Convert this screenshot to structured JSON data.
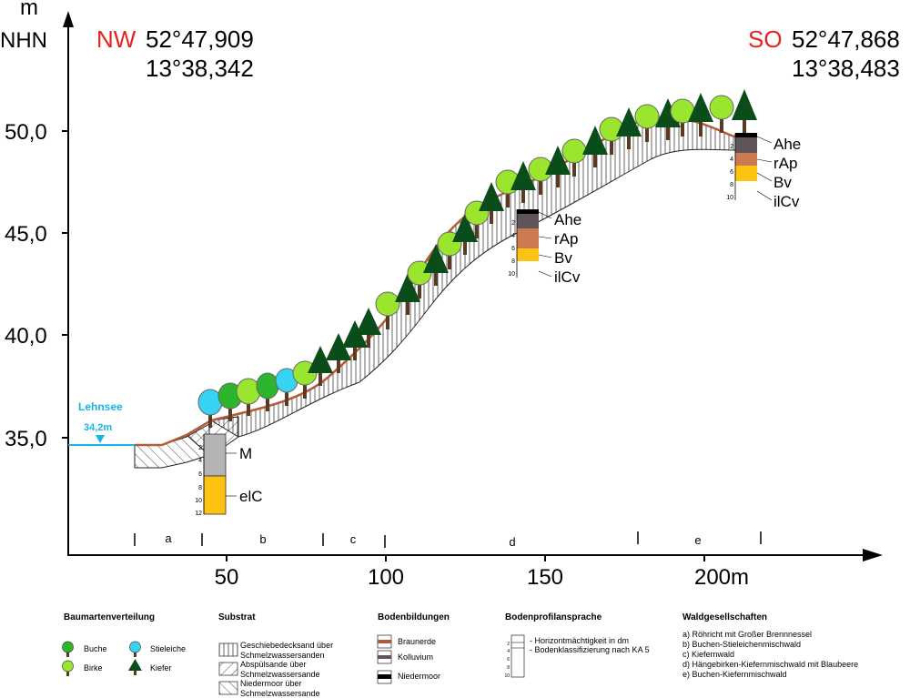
{
  "axis": {
    "y_unit_top": "m",
    "y_unit_name": "NHN",
    "y_ticks": [
      "50,0",
      "45,0",
      "40,0",
      "35,0"
    ],
    "x_ticks": [
      "50",
      "100",
      "150",
      "200m"
    ]
  },
  "endpoints": {
    "nw": {
      "label": "NW",
      "lat": "52°47,909",
      "lon": "13°38,342",
      "color": "#e52421"
    },
    "so": {
      "label": "SO",
      "lat": "52°47,868",
      "lon": "13°38,483",
      "color": "#e52421"
    }
  },
  "lake": {
    "name": "Lehnsee",
    "level": "34,2m",
    "color": "#17b5e6"
  },
  "segments": [
    "a",
    "b",
    "c",
    "d",
    "e"
  ],
  "profiles": [
    {
      "id": "lower",
      "horizons": [
        "M",
        "elC"
      ],
      "depth_ticks": [
        "2",
        "4",
        "6",
        "8",
        "10",
        "12"
      ]
    },
    {
      "id": "middle",
      "horizons": [
        "Ahe",
        "rAp",
        "Bv",
        "ilCv"
      ],
      "depth_ticks": [
        "2",
        "4",
        "6",
        "8",
        "10"
      ]
    },
    {
      "id": "upper",
      "horizons": [
        "Ahe",
        "rAp",
        "Bv",
        "ilCv"
      ],
      "depth_ticks": [
        "2",
        "4",
        "6",
        "8",
        "10"
      ]
    }
  ],
  "colors": {
    "buche": "#2db52d",
    "birke": "#9ae62e",
    "stieleiche": "#37d3f2",
    "kiefer": "#0b4d1a",
    "braunerde": "#b25b38",
    "kolluvium": "#5f5558",
    "niedermoor": "#000000",
    "bv": "#fdc313",
    "rap": "#cc7a52",
    "elc": "#fdc313",
    "m": "#b4b4b4"
  },
  "legend": {
    "baumarten": {
      "title": "Baumartenverteilung",
      "items": [
        "Buche",
        "Stieleiche",
        "Birke",
        "Kiefer"
      ]
    },
    "substrat": {
      "title": "Substrat",
      "items": [
        "Geschiebedecksand über Schmelzwassersanden",
        "Abspülsande über Schmelzwassersande",
        "Niedermoor über Schmelzwassersande"
      ]
    },
    "bodenbildungen": {
      "title": "Bodenbildungen",
      "items": [
        "Braunerde",
        "Kolluvium",
        "Niedermoor"
      ]
    },
    "bodenprofil": {
      "title": "Bodenprofilansprache",
      "items": [
        "- Horizontmächtigkeit in dm",
        "- Bodenklassifizierung nach KA 5"
      ],
      "depth_ticks": [
        "2",
        "4",
        "6",
        "8",
        "10"
      ]
    },
    "waldgesellschaften": {
      "title": "Waldgesellschaften",
      "items": [
        "a) Röhricht mit Großer Brennnessel",
        "b) Buchen-Stieleichenmischwald",
        "c) Kiefernwald",
        "d) Hängebirken-Kiefernmischwald mit Blaubeere",
        "e) Buchen-Kiefernmischwald"
      ]
    }
  }
}
